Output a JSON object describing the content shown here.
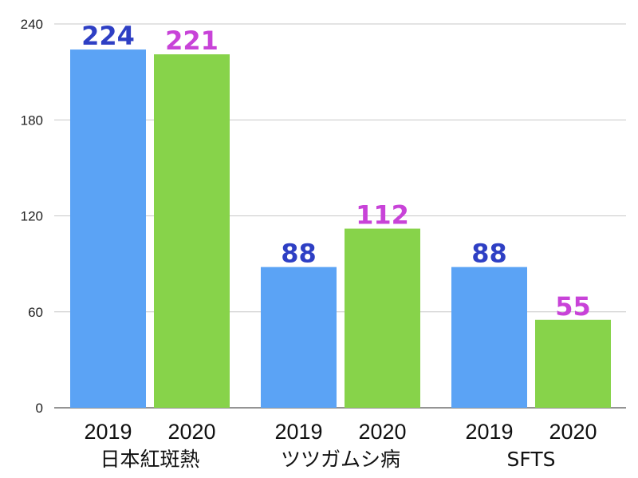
{
  "chart_data": {
    "type": "bar",
    "title": "",
    "xlabel": "",
    "ylabel": "",
    "ylim": [
      0,
      240
    ],
    "yticks": [
      0,
      60,
      120,
      180,
      240
    ],
    "grid": true,
    "groups": [
      "日本紅斑熱",
      "ツツガムシ病",
      "SFTS"
    ],
    "series": [
      {
        "name": "2019",
        "color": "#5BA3F5",
        "label_color": "#2E3FC4",
        "values": [
          224,
          88,
          88
        ]
      },
      {
        "name": "2020",
        "color": "#87D34A",
        "label_color": "#C843D8",
        "values": [
          221,
          112,
          55
        ]
      }
    ]
  }
}
